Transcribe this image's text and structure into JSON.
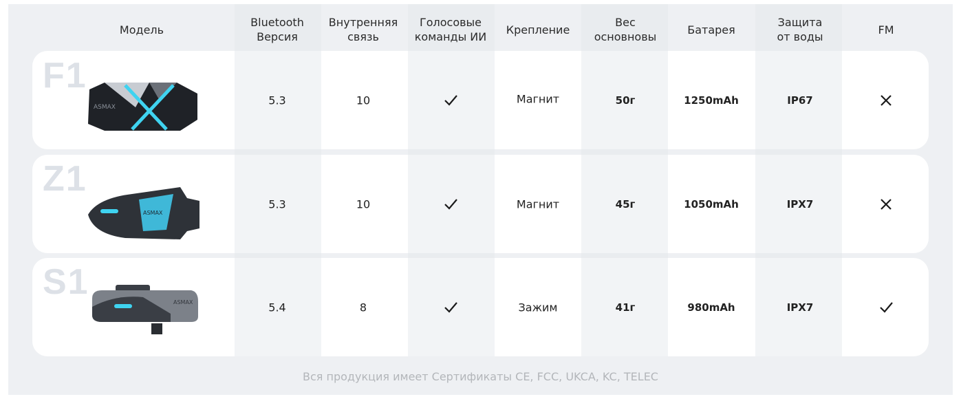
{
  "headers": {
    "model": "Модель",
    "bluetooth": "Bluetooth\nВерсия",
    "intercom": "Внутренняя\nсвязь",
    "voice": "Голосовые\nкоманды ИИ",
    "mount": "Крепление",
    "weight": "Вес\nосновновы",
    "battery": "Батарея",
    "waterproof": "Защита\nот воды",
    "fm": "FM"
  },
  "rows": [
    {
      "model": "F1",
      "brand": "ASMAX",
      "bluetooth": "5.3",
      "intercom": "10",
      "voice": "check-icon",
      "mount": "Магнит",
      "weight": "50г",
      "battery": "1250mAh",
      "waterproof": "IP67",
      "fm": "cross-icon"
    },
    {
      "model": "Z1",
      "brand": "ASMAX",
      "bluetooth": "5.3",
      "intercom": "10",
      "voice": "check-icon",
      "mount": "Магнит",
      "weight": "45г",
      "battery": "1050mAh",
      "waterproof": "IPX7",
      "fm": "cross-icon"
    },
    {
      "model": "S1",
      "brand": "ASMAX",
      "bluetooth": "5.4",
      "intercom": "8",
      "voice": "check-icon",
      "mount": "Зажим",
      "weight": "41г",
      "battery": "980mAh",
      "waterproof": "IPX7",
      "fm": "check-icon"
    }
  ],
  "footer": "Вся продукция имеет Сертификаты CE, FCC, UKCA, KC, TELEC",
  "colors": {
    "panel": "#eef0f3",
    "card": "#ffffff",
    "accent": "#3fd3f0",
    "device": "#2b2f36"
  }
}
